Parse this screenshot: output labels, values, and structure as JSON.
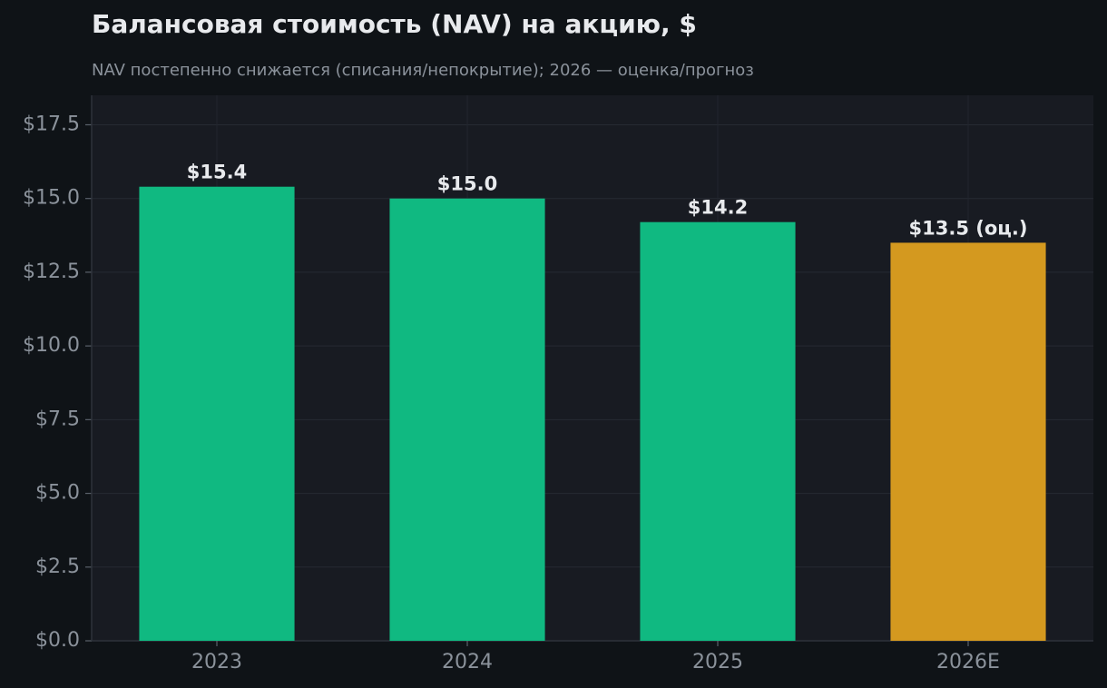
{
  "chart_data": {
    "type": "bar",
    "title": "Балансовая стоимость (NAV) на акцию, $",
    "subtitle": "NAV постепенно снижается (списания/непокрытие); 2026 — оценка/прогноз",
    "categories": [
      "2023",
      "2024",
      "2025",
      "2026E"
    ],
    "values": [
      15.4,
      15.0,
      14.2,
      13.5
    ],
    "value_labels": [
      "$15.4",
      "$15.0",
      "$14.2",
      "$13.5 (оц.)"
    ],
    "colors": [
      "#10b981",
      "#10b981",
      "#10b981",
      "#d4991f"
    ],
    "ylim": [
      0,
      18.5
    ],
    "yticks": [
      {
        "value": 0,
        "label": "$0.0"
      },
      {
        "value": 2.5,
        "label": "$2.5"
      },
      {
        "value": 5,
        "label": "$5.0"
      },
      {
        "value": 7.5,
        "label": "$7.5"
      },
      {
        "value": 10,
        "label": "$10.0"
      },
      {
        "value": 12.5,
        "label": "$12.5"
      },
      {
        "value": 15,
        "label": "$15.0"
      },
      {
        "value": 17.5,
        "label": "$17.5"
      }
    ],
    "grid": true
  }
}
